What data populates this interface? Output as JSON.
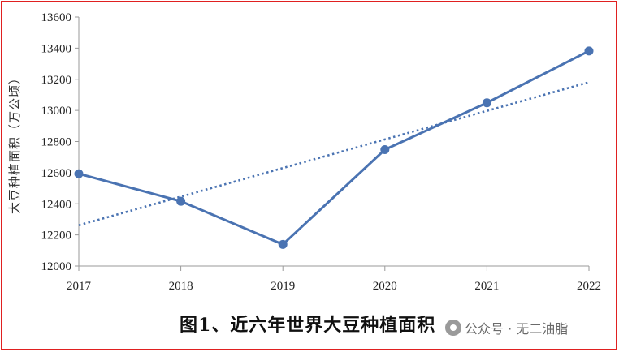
{
  "chart_data": {
    "type": "line",
    "categories": [
      "2017",
      "2018",
      "2019",
      "2020",
      "2021",
      "2022"
    ],
    "series": [
      {
        "values": [
          12593,
          12416,
          12139,
          12748,
          13049,
          13382
        ]
      }
    ],
    "trendline": {
      "type": "linear",
      "style": "dotted",
      "start": 12262,
      "end": 13181
    },
    "ylabel": "大豆种植面积（万公顷）",
    "xlabel": "",
    "ylim": [
      12000,
      13600
    ],
    "yticks": [
      12000,
      12200,
      12400,
      12600,
      12800,
      13000,
      13200,
      13400,
      13600
    ],
    "grid": false,
    "legend": "none",
    "colors": {
      "line": "#4a73b2",
      "trend": "#4a73b2"
    }
  },
  "caption": "图1、近六年世界大豆种植面积",
  "watermark": "公众号 · 无二油脂",
  "frame_color": "#e02020"
}
